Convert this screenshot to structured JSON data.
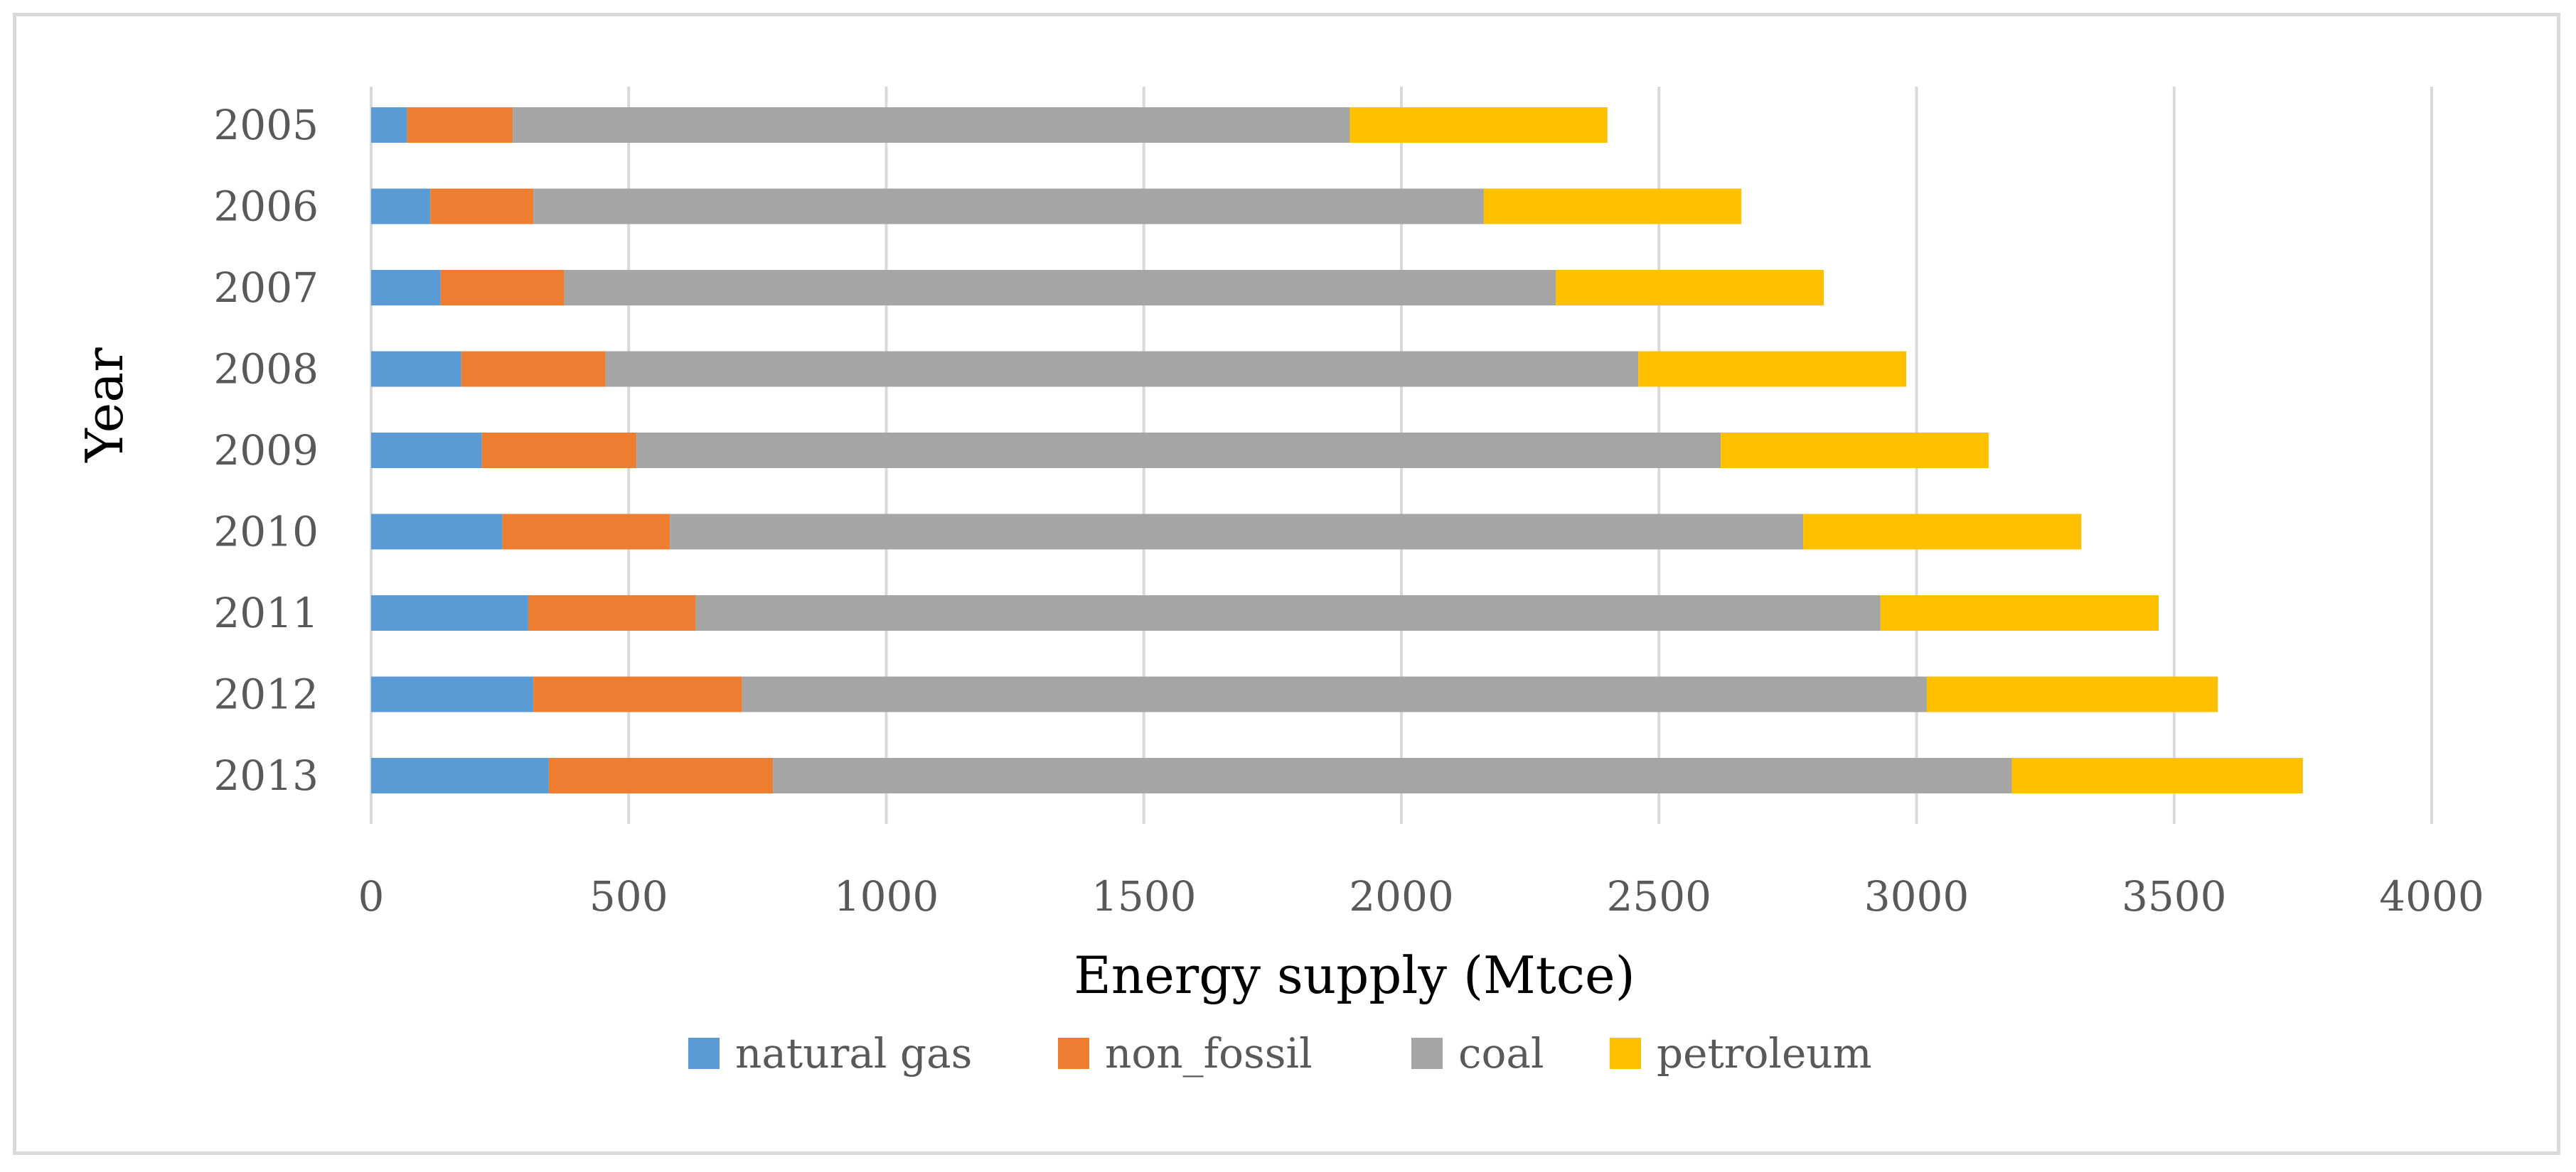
{
  "chart_data": {
    "type": "bar",
    "orientation": "horizontal",
    "stacked": true,
    "title": "",
    "xlabel": "Energy supply (Mtce)",
    "ylabel": "Year",
    "xlim": [
      0,
      4000
    ],
    "xticks": [
      "0",
      "500",
      "1000",
      "1500",
      "2000",
      "2500",
      "3000",
      "3500",
      "4000"
    ],
    "grid": true,
    "legend_position": "bottom",
    "categories": [
      "2005",
      "2006",
      "2007",
      "2008",
      "2009",
      "2010",
      "2011",
      "2012",
      "2013"
    ],
    "series": [
      {
        "name": "natural gas",
        "color": "#5b9bd5",
        "values": [
          70,
          115,
          135,
          175,
          215,
          255,
          305,
          315,
          345
        ]
      },
      {
        "name": "non_fossil",
        "color": "#ed7d31",
        "values": [
          205,
          200,
          240,
          280,
          300,
          325,
          325,
          405,
          435
        ]
      },
      {
        "name": "coal",
        "color": "#a5a5a5",
        "values": [
          1625,
          1845,
          1925,
          2005,
          2105,
          2200,
          2300,
          2300,
          2405
        ]
      },
      {
        "name": "petroleum",
        "color": "#ffc000",
        "values": [
          500,
          500,
          520,
          520,
          520,
          540,
          540,
          565,
          565
        ]
      }
    ]
  }
}
